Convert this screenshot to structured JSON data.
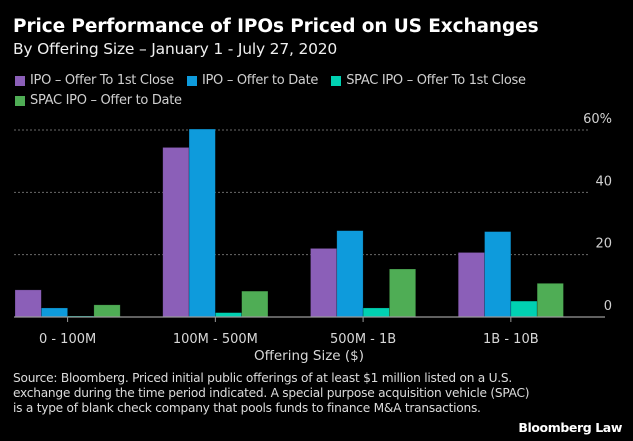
{
  "header": {
    "title": "Price Performance of IPOs Priced on US Exchanges",
    "subtitle": "By Offering Size – January 1 - July 27, 2020"
  },
  "chart_data": {
    "type": "bar",
    "title": "Price Performance of IPOs Priced on US Exchanges",
    "subtitle": "By Offering Size – January 1 - July 27, 2020",
    "xlabel": "Offering Size ($)",
    "ylabel": "",
    "ylim": [
      0,
      60
    ],
    "yticks": [
      0,
      20,
      40,
      60
    ],
    "ytick_labels": [
      "0",
      "20",
      "40",
      "60%"
    ],
    "y_axis_side": "right",
    "grid": true,
    "legend_position": "top-left",
    "categories": [
      "0 - 100M",
      "100M - 500M",
      "500M - 1B",
      "1B - 10B"
    ],
    "series": [
      {
        "name": "IPO – Offer To 1st Close",
        "color": "#8b5fb8",
        "values": [
          8.7,
          54.4,
          22.0,
          20.7
        ]
      },
      {
        "name": "IPO – Offer to Date",
        "color": "#0e9bdc",
        "values": [
          2.9,
          60.3,
          27.7,
          27.4
        ]
      },
      {
        "name": "SPAC IPO – Offer To 1st Close",
        "color": "#00d1b2",
        "values": [
          0.2,
          1.4,
          2.9,
          5.1
        ]
      },
      {
        "name": "SPAC IPO – Offer to Date",
        "color": "#4fad55",
        "values": [
          3.9,
          8.3,
          15.4,
          10.8
        ]
      }
    ]
  },
  "footer": {
    "source": "Source: Bloomberg. Priced initial public offerings of at least $1 million listed on a U.S. exchange during the time period indicated. A special purpose acquisition vehicle (SPAC) is a type of blank check company that pools funds to finance M&A transactions.",
    "brand": "Bloomberg Law"
  }
}
